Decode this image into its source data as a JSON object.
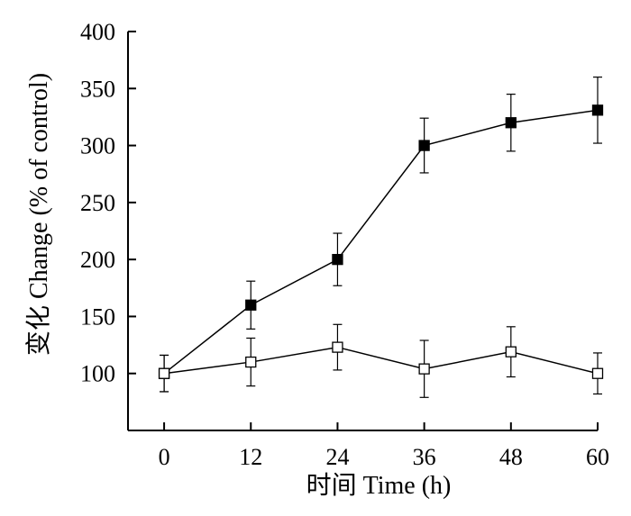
{
  "chart_data": {
    "type": "line",
    "xlabel": "时间 Time (h)",
    "ylabel": "变化 Change (% of control)",
    "x": [
      0,
      12,
      24,
      36,
      48,
      60
    ],
    "xlim": [
      -5,
      60
    ],
    "ylim": [
      50,
      400
    ],
    "xticks": [
      0,
      12,
      24,
      36,
      48,
      60
    ],
    "yticks": [
      100,
      150,
      200,
      250,
      300,
      350,
      400
    ],
    "grid": false,
    "series": [
      {
        "marker": "filled-square",
        "color": "#000000",
        "values": [
          100,
          160,
          200,
          300,
          320,
          331
        ],
        "errors": [
          16,
          21,
          23,
          24,
          25,
          29
        ]
      },
      {
        "marker": "open-square",
        "color": "#000000",
        "values": [
          100,
          110,
          123,
          104,
          119,
          100
        ],
        "errors": [
          16,
          21,
          20,
          25,
          22,
          18
        ]
      }
    ]
  }
}
